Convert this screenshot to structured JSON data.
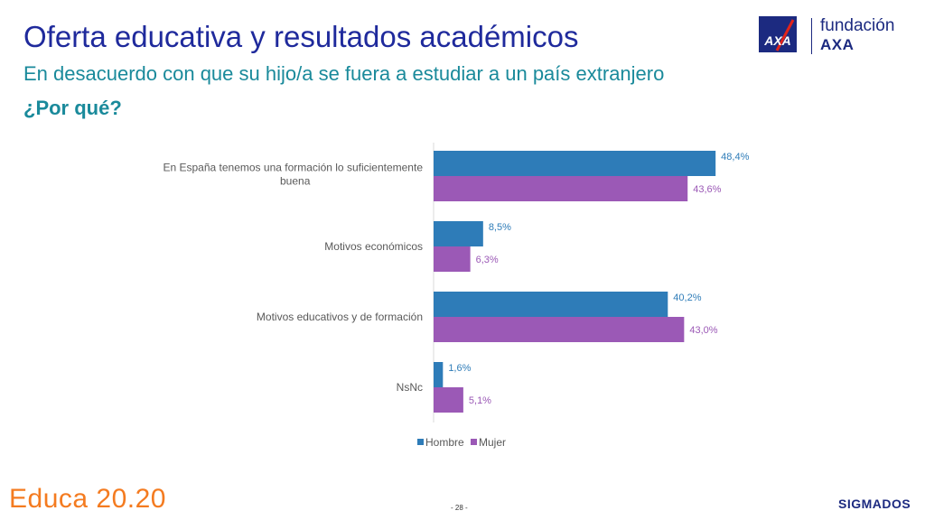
{
  "header": {
    "title": "Oferta educativa y resultados académicos",
    "subtitle": "En desacuerdo con que su hijo/a se fuera a estudiar a un país extranjero",
    "question": "¿Por qué?"
  },
  "logo": {
    "fundacion_text": "fundación",
    "axa_text": "AXA",
    "icon": "axa-logo-icon"
  },
  "footer": {
    "brand": "Educa 20.20",
    "page": "- 28 -",
    "company": "SIGMADOS"
  },
  "colors": {
    "title": "#1f2a9c",
    "subtitle": "#1a8a9b",
    "hombre": "#2e7cb8",
    "mujer": "#9b59b6",
    "brand_orange": "#f47b20",
    "axa_blue": "#1c2a80",
    "axa_red": "#e2231a"
  },
  "chart_data": {
    "type": "bar",
    "orientation": "horizontal",
    "categories": [
      [
        "En España tenemos una formación lo suficientemente",
        "buena"
      ],
      [
        "Motivos económicos"
      ],
      [
        "Motivos educativos y de formación"
      ],
      [
        "NsNc"
      ]
    ],
    "series": [
      {
        "name": "Hombre",
        "values": [
          48.4,
          8.5,
          40.2,
          1.6
        ],
        "labels": [
          "48,4%",
          "8,5%",
          "40,2%",
          "1,6%"
        ],
        "color": "#2e7cb8"
      },
      {
        "name": "Mujer",
        "values": [
          43.6,
          6.3,
          43.0,
          5.1
        ],
        "labels": [
          "43,6%",
          "6,3%",
          "43,0%",
          "5,1%"
        ],
        "color": "#9b59b6"
      }
    ],
    "xlim": [
      0,
      100
    ],
    "grid": false,
    "legend": "bottom"
  }
}
